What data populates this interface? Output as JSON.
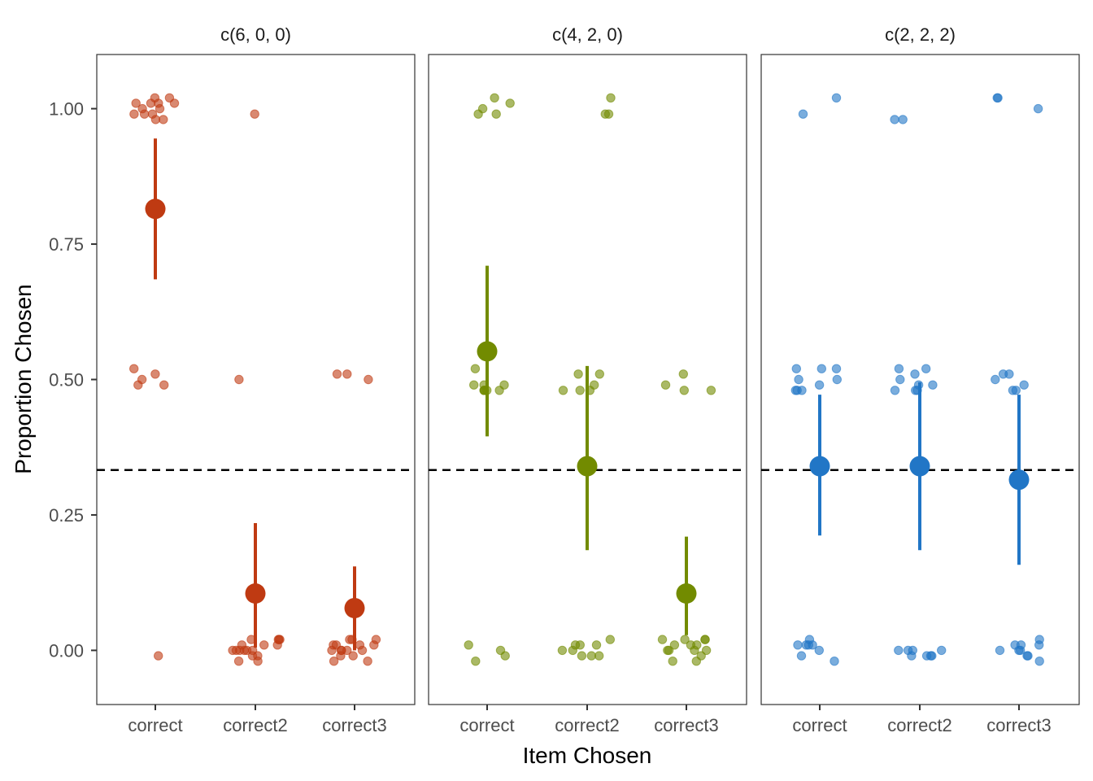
{
  "chart_data": {
    "type": "scatter",
    "xlabel": "Item Chosen",
    "ylabel": "Proportion Chosen",
    "categories": [
      "correct",
      "correct2",
      "correct3"
    ],
    "ylim": [
      -0.1,
      1.1
    ],
    "yticks": [
      0.0,
      0.25,
      0.5,
      0.75,
      1.0
    ],
    "ytick_labels": [
      "0.00",
      "0.25",
      "0.50",
      "0.75",
      "1.00"
    ],
    "reference_line_y": 0.333,
    "grid": false,
    "panels": [
      {
        "title": "c(6, 0, 0)",
        "color": "#BF3A12",
        "points": {
          "correct": [
            1.02,
            1.01,
            1.01,
            1.0,
            0.99,
            0.98,
            0.99,
            1.01,
            1.0,
            1.01,
            0.99,
            1.02,
            0.98,
            0.52,
            0.51,
            0.5,
            0.49,
            0.49,
            -0.01
          ],
          "correct2": [
            0.99,
            0.5,
            0.0,
            0.01,
            0.02,
            0.0,
            -0.01,
            0.02,
            0.0,
            0.02,
            -0.02,
            0.01,
            0.0,
            -0.02,
            0.02,
            0.0,
            0.01,
            -0.01,
            0.0
          ],
          "correct3": [
            0.51,
            0.5,
            0.51,
            0.0,
            0.01,
            0.02,
            0.0,
            0.01,
            -0.01,
            0.0,
            0.01,
            0.02,
            -0.02,
            0.0,
            0.01,
            -0.01,
            0.02,
            -0.02,
            0.0
          ]
        },
        "means": [
          0.815,
          0.105,
          0.078
        ],
        "ci_low": [
          0.685,
          0.005,
          0.0
        ],
        "ci_high": [
          0.945,
          0.235,
          0.155
        ]
      },
      {
        "title": "c(4, 2, 0)",
        "color": "#728B00",
        "points": {
          "correct": [
            1.0,
            0.99,
            1.02,
            1.01,
            0.99,
            0.49,
            0.48,
            0.48,
            0.49,
            0.48,
            0.48,
            0.52,
            0.49,
            0.48,
            0.01,
            -0.02,
            0.0,
            -0.01
          ],
          "correct2": [
            1.02,
            0.99,
            0.99,
            0.51,
            0.49,
            0.48,
            0.48,
            0.51,
            0.48,
            0.0,
            -0.01,
            0.01,
            -0.01,
            0.01,
            0.02,
            0.0,
            0.01,
            -0.01
          ],
          "correct3": [
            0.51,
            0.49,
            0.48,
            0.48,
            0.02,
            0.01,
            0.02,
            0.0,
            -0.01,
            0.0,
            0.01,
            0.02,
            0.0,
            0.01,
            -0.02,
            0.0,
            0.02,
            -0.02
          ]
        },
        "means": [
          0.552,
          0.34,
          0.105
        ],
        "ci_low": [
          0.395,
          0.185,
          0.028
        ],
        "ci_high": [
          0.71,
          0.525,
          0.21
        ]
      },
      {
        "title": "c(2, 2, 2)",
        "color": "#2176C6",
        "points": {
          "correct": [
            1.02,
            0.99,
            0.52,
            0.5,
            0.48,
            0.52,
            0.52,
            0.5,
            0.48,
            0.49,
            0.48,
            0.01,
            0.0,
            0.01,
            0.01,
            0.01,
            0.02,
            -0.02,
            -0.01
          ],
          "correct2": [
            0.98,
            0.98,
            0.52,
            0.52,
            0.51,
            0.5,
            0.49,
            0.48,
            0.48,
            0.49,
            0.48,
            -0.01,
            -0.01,
            0.0,
            -0.01,
            -0.01,
            0.0,
            0.0,
            0.0
          ],
          "correct3": [
            1.0,
            1.02,
            1.02,
            0.51,
            0.51,
            0.5,
            0.49,
            0.48,
            0.48,
            0.01,
            0.02,
            0.0,
            0.01,
            0.0,
            0.01,
            -0.01,
            0.0,
            -0.02,
            -0.01
          ]
        },
        "means": [
          0.34,
          0.34,
          0.315
        ],
        "ci_low": [
          0.212,
          0.185,
          0.158
        ],
        "ci_high": [
          0.472,
          0.495,
          0.472
        ]
      }
    ]
  }
}
